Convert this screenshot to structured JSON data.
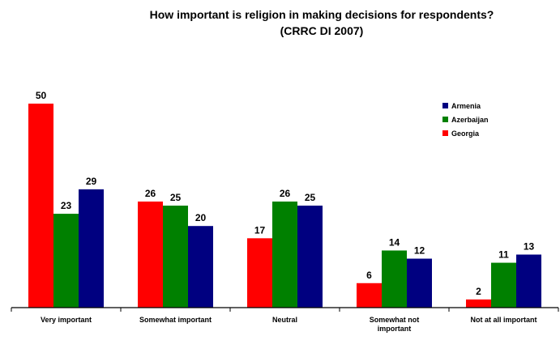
{
  "chart_data": {
    "type": "bar",
    "title_lines": [
      "How important is religion in making decisions for respondents?",
      "(CRRC DI 2007)"
    ],
    "categories": [
      [
        "Very important"
      ],
      [
        "Somewhat important"
      ],
      [
        "Neutral"
      ],
      [
        "Somewhat not",
        "important"
      ],
      [
        "Not at all important"
      ]
    ],
    "series": [
      {
        "name": "Georgia",
        "color": "#ff0000",
        "values": [
          50,
          26,
          17,
          6,
          2
        ]
      },
      {
        "name": "Azerbaijan",
        "color": "#008000",
        "values": [
          23,
          25,
          26,
          14,
          11
        ]
      },
      {
        "name": "Armenia",
        "color": "#000080",
        "values": [
          29,
          20,
          25,
          12,
          13
        ]
      }
    ],
    "legend_order": [
      "Armenia",
      "Azerbaijan",
      "Georgia"
    ],
    "legend_position": "top-right",
    "ylim": [
      0,
      50
    ],
    "grid": false,
    "data_labels": true
  }
}
